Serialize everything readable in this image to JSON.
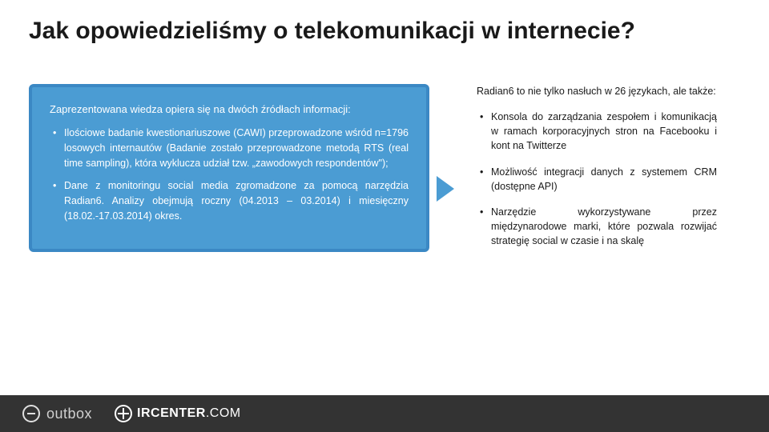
{
  "title": "Jak opowiedzieliśmy o telekomunikacji w internecie?",
  "left": {
    "intro": "Zaprezentowana wiedza opiera się na dwóch źródłach informacji:",
    "items": [
      "Ilościowe badanie kwestionariuszowe (CAWI) przeprowadzone wśród n=1796 losowych internautów (Badanie zostało przeprowadzone metodą RTS (real time sampling), która wyklucza udział tzw. „zawodowych respondentów\");",
      "Dane z monitoringu social media zgromadzone za pomocą narzędzia Radian6. Analizy obejmują roczny (04.2013 – 03.2014) i miesięczny (18.02.-17.03.2014) okres."
    ]
  },
  "right": {
    "intro": "Radian6 to nie tylko nasłuch w 26 językach, ale także:",
    "items": [
      "Konsola do zarządzania zespołem i komunikacją w ramach korporacyjnych stron na Facebooku i kont na Twitterze",
      "Możliwość integracji danych z systemem CRM (dostępne API)",
      "Narzędzie wykorzystywane przez międzynarodowe marki, które pozwala rozwijać strategię social w czasie i na skalę"
    ]
  },
  "footer": {
    "brand1": "outbox",
    "brand2_a": "IRCENTER",
    "brand2_b": ".COM"
  },
  "colors": {
    "box_bg": "#4b9cd3",
    "box_border": "#3b88c4",
    "footer_bg": "#333333",
    "title_text": "#1a1a1a",
    "box_text": "#ffffff"
  }
}
